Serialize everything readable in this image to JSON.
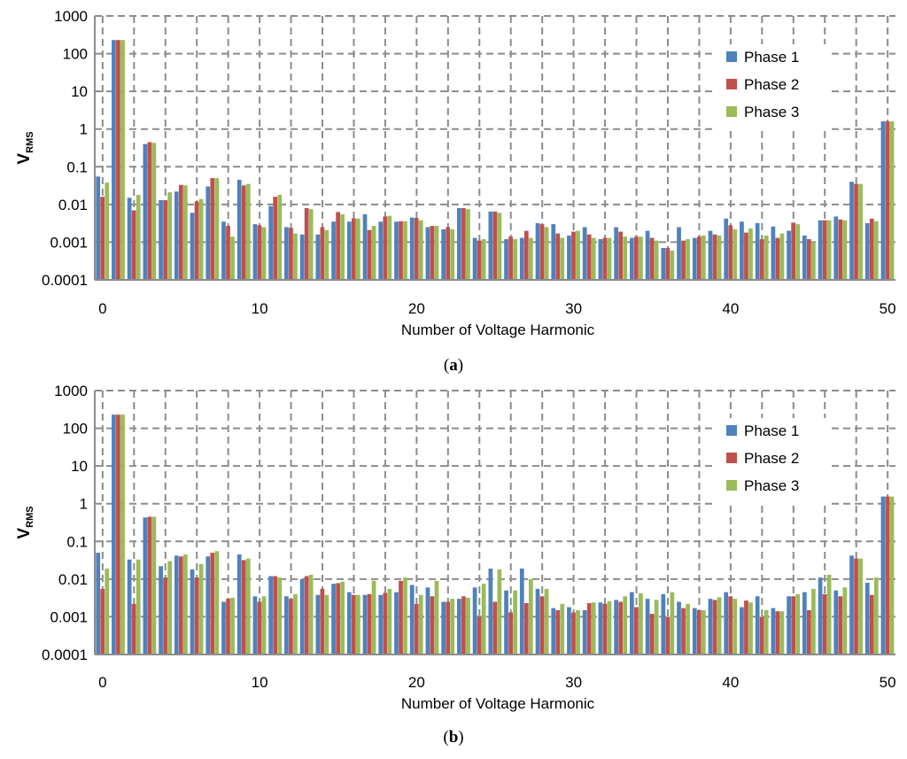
{
  "chart_data": [
    {
      "type": "bar",
      "caption_letter": "a",
      "xlabel": "Number of Voltage Harmonic",
      "ylabel_main": "V",
      "ylabel_sub": "RMS",
      "yscale": "log",
      "ylim": [
        0.0001,
        1000
      ],
      "yticks": [
        "0.0001",
        "0.001",
        "0.01",
        "0.1",
        "1",
        "10",
        "100",
        "1000"
      ],
      "xticks": [
        "0",
        "10",
        "20",
        "30",
        "40",
        "50"
      ],
      "grid": "dashed",
      "legend_placement": "top-right",
      "categories": [
        0,
        1,
        2,
        3,
        4,
        5,
        6,
        7,
        8,
        9,
        10,
        11,
        12,
        13,
        14,
        15,
        16,
        17,
        18,
        19,
        20,
        21,
        22,
        23,
        24,
        25,
        26,
        27,
        28,
        29,
        30,
        31,
        32,
        33,
        34,
        35,
        36,
        37,
        38,
        39,
        40,
        41,
        42,
        43,
        44,
        45,
        46,
        47,
        48,
        49,
        50
      ],
      "series": [
        {
          "name": "Phase 1",
          "color": "#4F81BD",
          "values": [
            0.055,
            230,
            0.015,
            0.4,
            0.013,
            0.022,
            0.006,
            0.03,
            0.0035,
            0.045,
            0.003,
            0.009,
            0.0025,
            0.0016,
            0.0016,
            0.0035,
            0.0035,
            0.0055,
            0.0035,
            0.0035,
            0.0045,
            0.0025,
            0.0022,
            0.008,
            0.0013,
            0.0065,
            0.0012,
            0.0013,
            0.0032,
            0.003,
            0.0015,
            0.0025,
            0.0012,
            0.0025,
            0.0013,
            0.002,
            0.0007,
            0.0025,
            0.0013,
            0.002,
            0.0042,
            0.0035,
            0.0032,
            0.0026,
            0.002,
            0.0015,
            0.0038,
            0.0048,
            0.04,
            0.0032,
            1.6
          ]
        },
        {
          "name": "Phase 2",
          "color": "#C0504D",
          "values": [
            0.016,
            230,
            0.007,
            0.45,
            0.013,
            0.033,
            0.012,
            0.05,
            0.0027,
            0.032,
            0.0028,
            0.016,
            0.0024,
            0.008,
            0.0025,
            0.0063,
            0.0043,
            0.0021,
            0.0048,
            0.0036,
            0.0044,
            0.0027,
            0.0025,
            0.008,
            0.0011,
            0.0065,
            0.0014,
            0.002,
            0.003,
            0.0017,
            0.0019,
            0.0016,
            0.0013,
            0.0019,
            0.0014,
            0.0013,
            0.0007,
            0.0011,
            0.0014,
            0.0016,
            0.0028,
            0.0018,
            0.0012,
            0.0013,
            0.0033,
            0.0012,
            0.0038,
            0.004,
            0.035,
            0.0042,
            1.6
          ]
        },
        {
          "name": "Phase 3",
          "color": "#9BBB59",
          "values": [
            0.038,
            230,
            0.018,
            0.43,
            0.021,
            0.032,
            0.014,
            0.05,
            0.0014,
            0.035,
            0.0025,
            0.018,
            0.0017,
            0.0075,
            0.0021,
            0.0055,
            0.0042,
            0.0027,
            0.005,
            0.0036,
            0.0038,
            0.0027,
            0.0022,
            0.0075,
            0.0012,
            0.006,
            0.0012,
            0.0013,
            0.0025,
            0.0013,
            0.002,
            0.0013,
            0.0013,
            0.0014,
            0.0014,
            0.0011,
            0.0006,
            0.0012,
            0.0015,
            0.0015,
            0.0022,
            0.0023,
            0.0015,
            0.0017,
            0.003,
            0.001,
            0.0038,
            0.0038,
            0.035,
            0.0036,
            1.6
          ]
        }
      ]
    },
    {
      "type": "bar",
      "caption_letter": "b",
      "xlabel": "Number of Voltage Harmonic",
      "ylabel_main": "V",
      "ylabel_sub": "RMS",
      "yscale": "log",
      "ylim": [
        0.0001,
        1000
      ],
      "yticks": [
        "0.0001",
        "0.001",
        "0.01",
        "0.1",
        "1",
        "10",
        "100",
        "1000"
      ],
      "xticks": [
        "0",
        "10",
        "20",
        "30",
        "40",
        "50"
      ],
      "grid": "dashed",
      "legend_placement": "top-right",
      "categories": [
        0,
        1,
        2,
        3,
        4,
        5,
        6,
        7,
        8,
        9,
        10,
        11,
        12,
        13,
        14,
        15,
        16,
        17,
        18,
        19,
        20,
        21,
        22,
        23,
        24,
        25,
        26,
        27,
        28,
        29,
        30,
        31,
        32,
        33,
        34,
        35,
        36,
        37,
        38,
        39,
        40,
        41,
        42,
        43,
        44,
        45,
        46,
        47,
        48,
        49,
        50
      ],
      "series": [
        {
          "name": "Phase 1",
          "color": "#4F81BD",
          "values": [
            0.05,
            230,
            0.033,
            0.43,
            0.022,
            0.042,
            0.018,
            0.04,
            0.0025,
            0.045,
            0.0035,
            0.012,
            0.0035,
            0.01,
            0.0038,
            0.0075,
            0.0045,
            0.0038,
            0.0038,
            0.0045,
            0.007,
            0.006,
            0.0025,
            0.003,
            0.006,
            0.019,
            0.005,
            0.019,
            0.0055,
            0.0017,
            0.0018,
            0.0015,
            0.0024,
            0.0028,
            0.0045,
            0.003,
            0.004,
            0.0025,
            0.0017,
            0.003,
            0.0045,
            0.0018,
            0.0035,
            0.0017,
            0.0035,
            0.0045,
            0.011,
            0.005,
            0.042,
            0.008,
            1.55
          ]
        },
        {
          "name": "Phase 2",
          "color": "#C0504D",
          "values": [
            0.0055,
            230,
            0.0022,
            0.45,
            0.011,
            0.04,
            0.011,
            0.05,
            0.003,
            0.032,
            0.0025,
            0.012,
            0.003,
            0.012,
            0.0055,
            0.0078,
            0.0038,
            0.004,
            0.0043,
            0.009,
            0.0022,
            0.0035,
            0.0025,
            0.0035,
            0.001,
            0.0025,
            0.0013,
            0.0023,
            0.0035,
            0.0015,
            0.0013,
            0.0023,
            0.0022,
            0.0025,
            0.0018,
            0.0012,
            0.001,
            0.0017,
            0.0015,
            0.0028,
            0.0035,
            0.0027,
            0.001,
            0.0014,
            0.0035,
            0.0015,
            0.004,
            0.0035,
            0.035,
            0.0038,
            1.55
          ]
        },
        {
          "name": "Phase 3",
          "color": "#9BBB59",
          "values": [
            0.019,
            230,
            0.033,
            0.45,
            0.03,
            0.045,
            0.025,
            0.055,
            0.0032,
            0.035,
            0.0035,
            0.011,
            0.004,
            0.013,
            0.0038,
            0.0085,
            0.0038,
            0.009,
            0.0055,
            0.011,
            0.0038,
            0.009,
            0.003,
            0.0032,
            0.0075,
            0.018,
            0.005,
            0.01,
            0.0055,
            0.0022,
            0.0015,
            0.0024,
            0.0026,
            0.0035,
            0.0042,
            0.0028,
            0.0045,
            0.0022,
            0.0015,
            0.0033,
            0.003,
            0.0024,
            0.0015,
            0.0014,
            0.004,
            0.0055,
            0.013,
            0.006,
            0.035,
            0.011,
            1.55
          ]
        }
      ]
    }
  ]
}
